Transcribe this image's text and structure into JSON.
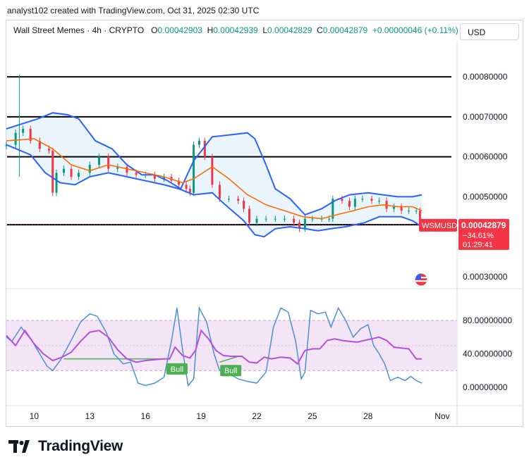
{
  "header": {
    "credit": "analyst102 created with TradingView.com, Oct 31, 2025 02:30 UTC"
  },
  "legend": {
    "symbol": "Wall Street Memes · 4h · CRYPTO",
    "o_label": "O",
    "o_value": "0.00042903",
    "h_label": "H",
    "h_value": "0.00042939",
    "l_label": "L",
    "l_value": "0.00042829",
    "c_label": "C",
    "c_value": "0.00042879",
    "change": "+0.00000046 (+0.11%)"
  },
  "currency_button": {
    "label": "USD"
  },
  "price_tag": {
    "symbol": "WSMUSD",
    "price": "0.00042879",
    "change_pct": "−34.61%",
    "countdown": "01:29:41"
  },
  "colors": {
    "up": "#089981",
    "down": "#f23645",
    "bb_outer": "#2962ff",
    "bb_basis": "#ff6d00",
    "bb_fill": "#e3f2fd",
    "stoch_k": "#4a90d9",
    "stoch_d": "#b44ee0",
    "osc_band": "#f3e5f5"
  },
  "footer": {
    "brand": "TradingView",
    "logo_icon": "tradingview-logo-icon"
  },
  "chart_data": [
    {
      "type": "candlestick",
      "y_ticks": [
        "0.00080000",
        "0.00070000",
        "0.00060000",
        "0.00050000",
        "0.00030000"
      ],
      "y_tick_values": [
        0.0008,
        0.0007,
        0.0006,
        0.0005,
        0.0003
      ],
      "ylim": [
        0.00027,
        0.00089
      ],
      "x_ticks": [
        "10",
        "13",
        "16",
        "19",
        "22",
        "25",
        "28",
        "Nov"
      ],
      "x_tick_days": [
        10,
        13,
        16,
        19,
        22,
        25,
        28,
        32
      ],
      "xlim": [
        8.5,
        32.8
      ],
      "horizontal_levels": [
        0.0008,
        0.0007,
        0.0006,
        0.00043
      ],
      "last_price": 0.00042879,
      "close_points": [
        [
          8.5,
          0.00063
        ],
        [
          9.0,
          0.00066
        ],
        [
          9.4,
          0.00067
        ],
        [
          9.8,
          0.00064
        ],
        [
          10.3,
          0.00062
        ],
        [
          10.8,
          0.000615
        ],
        [
          11.0,
          0.00051
        ],
        [
          11.2,
          0.00056
        ],
        [
          11.6,
          0.00057
        ],
        [
          12.0,
          0.00055
        ],
        [
          12.4,
          0.00056
        ],
        [
          13.0,
          0.00058
        ],
        [
          13.5,
          0.0006
        ],
        [
          14.0,
          0.00057
        ],
        [
          14.5,
          0.000575
        ],
        [
          15.0,
          0.00056
        ],
        [
          15.5,
          0.000555
        ],
        [
          16.0,
          0.000555
        ],
        [
          16.5,
          0.000545
        ],
        [
          17.0,
          0.00055
        ],
        [
          17.4,
          0.00054
        ],
        [
          17.8,
          0.00053
        ],
        [
          18.2,
          0.00052
        ],
        [
          18.4,
          0.00051
        ],
        [
          18.6,
          0.00063
        ],
        [
          18.9,
          0.00064
        ],
        [
          19.2,
          0.0006
        ],
        [
          19.6,
          0.00053
        ],
        [
          20.0,
          0.000495
        ],
        [
          20.5,
          0.000495
        ],
        [
          21.0,
          0.00049
        ],
        [
          21.3,
          0.00047
        ],
        [
          21.6,
          0.000435
        ],
        [
          22.0,
          0.000445
        ],
        [
          22.5,
          0.000445
        ],
        [
          23.0,
          0.000445
        ],
        [
          23.5,
          0.000445
        ],
        [
          24.0,
          0.000435
        ],
        [
          24.3,
          0.00042
        ],
        [
          24.6,
          0.000445
        ],
        [
          25.0,
          0.000445
        ],
        [
          25.5,
          0.000445
        ],
        [
          25.9,
          0.000445
        ],
        [
          26.1,
          0.000495
        ],
        [
          26.6,
          0.00049
        ],
        [
          27.0,
          0.000475
        ],
        [
          27.3,
          0.000495
        ],
        [
          27.7,
          0.000495
        ],
        [
          28.2,
          0.00049
        ],
        [
          28.6,
          0.00049
        ],
        [
          29.0,
          0.00047
        ],
        [
          29.4,
          0.000475
        ],
        [
          29.8,
          0.000465
        ],
        [
          30.2,
          0.000465
        ],
        [
          30.6,
          0.000465
        ],
        [
          30.8,
          0.00043
        ],
        [
          30.9,
          0.000429
        ]
      ],
      "bb_upper": [
        [
          8.5,
          0.00067
        ],
        [
          10.2,
          0.000695
        ],
        [
          11.0,
          0.00071
        ],
        [
          11.8,
          0.000705
        ],
        [
          12.4,
          0.000695
        ],
        [
          13.3,
          0.00064
        ],
        [
          14.2,
          0.00062
        ],
        [
          15.0,
          0.00058
        ],
        [
          15.8,
          0.000555
        ],
        [
          16.5,
          0.000555
        ],
        [
          17.2,
          0.00054
        ],
        [
          17.9,
          0.00052
        ],
        [
          18.6,
          0.00059
        ],
        [
          19.6,
          0.00065
        ],
        [
          20.6,
          0.000655
        ],
        [
          21.5,
          0.00066
        ],
        [
          21.9,
          0.000645
        ],
        [
          22.5,
          0.00058
        ],
        [
          23.0,
          0.00052
        ],
        [
          23.8,
          0.000495
        ],
        [
          24.6,
          0.000455
        ],
        [
          25.5,
          0.00047
        ],
        [
          26.2,
          0.00049
        ],
        [
          27.0,
          0.000505
        ],
        [
          28.0,
          0.00051
        ],
        [
          28.8,
          0.000505
        ],
        [
          29.6,
          0.0005
        ],
        [
          30.4,
          0.0005
        ],
        [
          30.9,
          0.000505
        ]
      ],
      "bb_basis": [
        [
          8.5,
          0.00064
        ],
        [
          10.0,
          0.000645
        ],
        [
          11.0,
          0.00062
        ],
        [
          12.0,
          0.00058
        ],
        [
          13.0,
          0.000565
        ],
        [
          14.0,
          0.00058
        ],
        [
          15.0,
          0.00057
        ],
        [
          16.0,
          0.00056
        ],
        [
          17.0,
          0.00055
        ],
        [
          18.0,
          0.000535
        ],
        [
          18.6,
          0.000545
        ],
        [
          19.6,
          0.000575
        ],
        [
          20.5,
          0.000545
        ],
        [
          21.5,
          0.000505
        ],
        [
          22.5,
          0.00048
        ],
        [
          23.5,
          0.000465
        ],
        [
          24.5,
          0.00045
        ],
        [
          25.5,
          0.000445
        ],
        [
          26.3,
          0.000455
        ],
        [
          27.2,
          0.000465
        ],
        [
          28.0,
          0.000475
        ],
        [
          28.8,
          0.00048
        ],
        [
          29.6,
          0.000475
        ],
        [
          30.4,
          0.000475
        ],
        [
          30.9,
          0.000465
        ]
      ],
      "bb_lower": [
        [
          8.5,
          0.00063
        ],
        [
          9.8,
          0.000605
        ],
        [
          10.6,
          0.00056
        ],
        [
          11.4,
          0.000535
        ],
        [
          12.2,
          0.00053
        ],
        [
          13.0,
          0.00055
        ],
        [
          14.0,
          0.00056
        ],
        [
          15.0,
          0.00055
        ],
        [
          16.0,
          0.00054
        ],
        [
          17.0,
          0.00053
        ],
        [
          17.8,
          0.00052
        ],
        [
          18.6,
          0.000505
        ],
        [
          19.6,
          0.00051
        ],
        [
          20.3,
          0.00048
        ],
        [
          21.3,
          0.00044
        ],
        [
          21.9,
          0.000405
        ],
        [
          22.4,
          0.0004
        ],
        [
          23.0,
          0.00042
        ],
        [
          23.8,
          0.000425
        ],
        [
          24.6,
          0.00042
        ],
        [
          25.3,
          0.000415
        ],
        [
          26.0,
          0.00042
        ],
        [
          26.8,
          0.000425
        ],
        [
          27.8,
          0.000435
        ],
        [
          28.6,
          0.00045
        ],
        [
          29.2,
          0.00045
        ],
        [
          29.8,
          0.00045
        ],
        [
          30.4,
          0.00044
        ],
        [
          30.9,
          0.000425
        ]
      ]
    },
    {
      "type": "line",
      "y_ticks": [
        "80.00000000",
        "40.00000000",
        "0.00000000"
      ],
      "y_tick_values": [
        80,
        40,
        0
      ],
      "ylim": [
        -22,
        118
      ],
      "band": [
        20,
        80
      ],
      "labels": [
        {
          "text": "Bull",
          "x": 17.7,
          "y": 22
        },
        {
          "text": "Bull",
          "x": 20.6,
          "y": 20
        }
      ],
      "series": [
        {
          "values": [
            [
              8.5,
              60
            ],
            [
              8.8,
              55
            ],
            [
              9.3,
              72
            ],
            [
              9.9,
              55
            ],
            [
              10.3,
              40
            ],
            [
              10.7,
              25
            ],
            [
              11.0,
              20
            ],
            [
              11.4,
              32
            ],
            [
              11.9,
              52
            ],
            [
              12.5,
              78
            ],
            [
              13.0,
              88
            ],
            [
              13.4,
              85
            ],
            [
              13.9,
              65
            ],
            [
              14.3,
              40
            ],
            [
              14.8,
              28
            ],
            [
              15.2,
              30
            ],
            [
              15.6,
              5
            ],
            [
              16.0,
              2
            ],
            [
              16.5,
              5
            ],
            [
              17.0,
              12
            ],
            [
              17.4,
              55
            ],
            [
              17.7,
              95
            ],
            [
              18.0,
              45
            ],
            [
              18.3,
              2
            ],
            [
              18.6,
              10
            ],
            [
              18.9,
              95
            ],
            [
              19.3,
              78
            ],
            [
              19.7,
              40
            ],
            [
              20.0,
              20
            ],
            [
              20.4,
              18
            ],
            [
              21.0,
              10
            ],
            [
              21.5,
              7
            ],
            [
              22.0,
              5
            ],
            [
              22.5,
              18
            ],
            [
              22.9,
              72
            ],
            [
              23.3,
              95
            ],
            [
              23.7,
              90
            ],
            [
              24.1,
              55
            ],
            [
              24.4,
              10
            ],
            [
              24.6,
              18
            ],
            [
              24.9,
              92
            ],
            [
              25.3,
              88
            ],
            [
              25.7,
              90
            ],
            [
              26.0,
              72
            ],
            [
              26.4,
              95
            ],
            [
              26.8,
              80
            ],
            [
              27.2,
              60
            ],
            [
              27.6,
              70
            ],
            [
              28.0,
              75
            ],
            [
              28.3,
              50
            ],
            [
              28.6,
              40
            ],
            [
              28.9,
              28
            ],
            [
              29.2,
              8
            ],
            [
              29.6,
              12
            ],
            [
              30.0,
              8
            ],
            [
              30.3,
              13
            ],
            [
              30.6,
              8
            ],
            [
              30.9,
              5
            ]
          ]
        },
        {
          "values": [
            [
              8.5,
              62
            ],
            [
              9.0,
              50
            ],
            [
              9.5,
              68
            ],
            [
              10.0,
              52
            ],
            [
              10.5,
              40
            ],
            [
              11.0,
              32
            ],
            [
              11.5,
              36
            ],
            [
              12.0,
              42
            ],
            [
              12.5,
              55
            ],
            [
              13.0,
              66
            ],
            [
              13.5,
              68
            ],
            [
              14.0,
              60
            ],
            [
              14.5,
              45
            ],
            [
              15.0,
              34
            ],
            [
              15.5,
              30
            ],
            [
              16.0,
              32
            ],
            [
              16.5,
              33
            ],
            [
              17.0,
              34
            ],
            [
              17.3,
              34
            ],
            [
              17.6,
              48
            ],
            [
              18.0,
              38
            ],
            [
              18.4,
              35
            ],
            [
              18.7,
              44
            ],
            [
              19.0,
              68
            ],
            [
              19.4,
              58
            ],
            [
              19.8,
              44
            ],
            [
              20.2,
              38
            ],
            [
              20.6,
              37
            ],
            [
              21.2,
              37
            ],
            [
              21.6,
              30
            ],
            [
              22.0,
              29
            ],
            [
              22.4,
              36
            ],
            [
              22.8,
              34
            ],
            [
              23.3,
              36
            ],
            [
              23.8,
              35
            ],
            [
              24.2,
              28
            ],
            [
              24.6,
              44
            ],
            [
              25.0,
              46
            ],
            [
              25.4,
              46
            ],
            [
              25.8,
              56
            ],
            [
              26.2,
              58
            ],
            [
              26.6,
              56
            ],
            [
              27.0,
              55
            ],
            [
              27.4,
              54
            ],
            [
              27.8,
              56
            ],
            [
              28.2,
              58
            ],
            [
              28.6,
              60
            ],
            [
              29.0,
              56
            ],
            [
              29.4,
              48
            ],
            [
              29.8,
              47
            ],
            [
              30.2,
              46
            ],
            [
              30.6,
              34
            ],
            [
              30.9,
              34
            ]
          ]
        }
      ]
    }
  ]
}
